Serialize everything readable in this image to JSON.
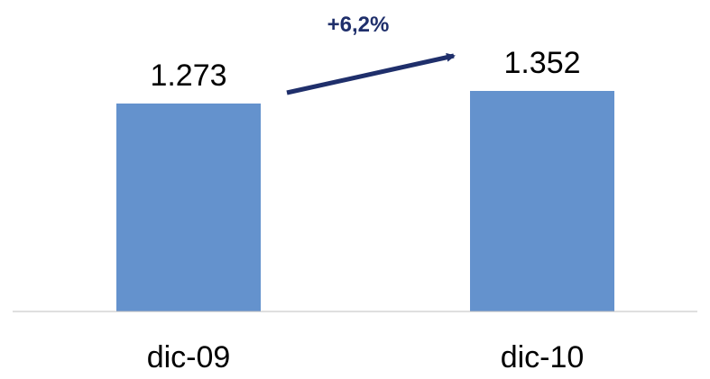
{
  "chart_data": {
    "type": "bar",
    "categories": [
      "dic-09",
      "dic-10"
    ],
    "values": [
      1273,
      1352
    ],
    "value_labels": [
      "1.273",
      "1.352"
    ],
    "title": "",
    "xlabel": "",
    "ylabel": "",
    "ylim": [
      0,
      1400
    ],
    "grid": false,
    "legend": "none",
    "bar_color": "#6492cd",
    "axis_color": "#bfbfbf",
    "annotation": {
      "text": "+6,2%",
      "from_category": "dic-09",
      "to_category": "dic-10",
      "color": "#1f2f6b"
    }
  }
}
